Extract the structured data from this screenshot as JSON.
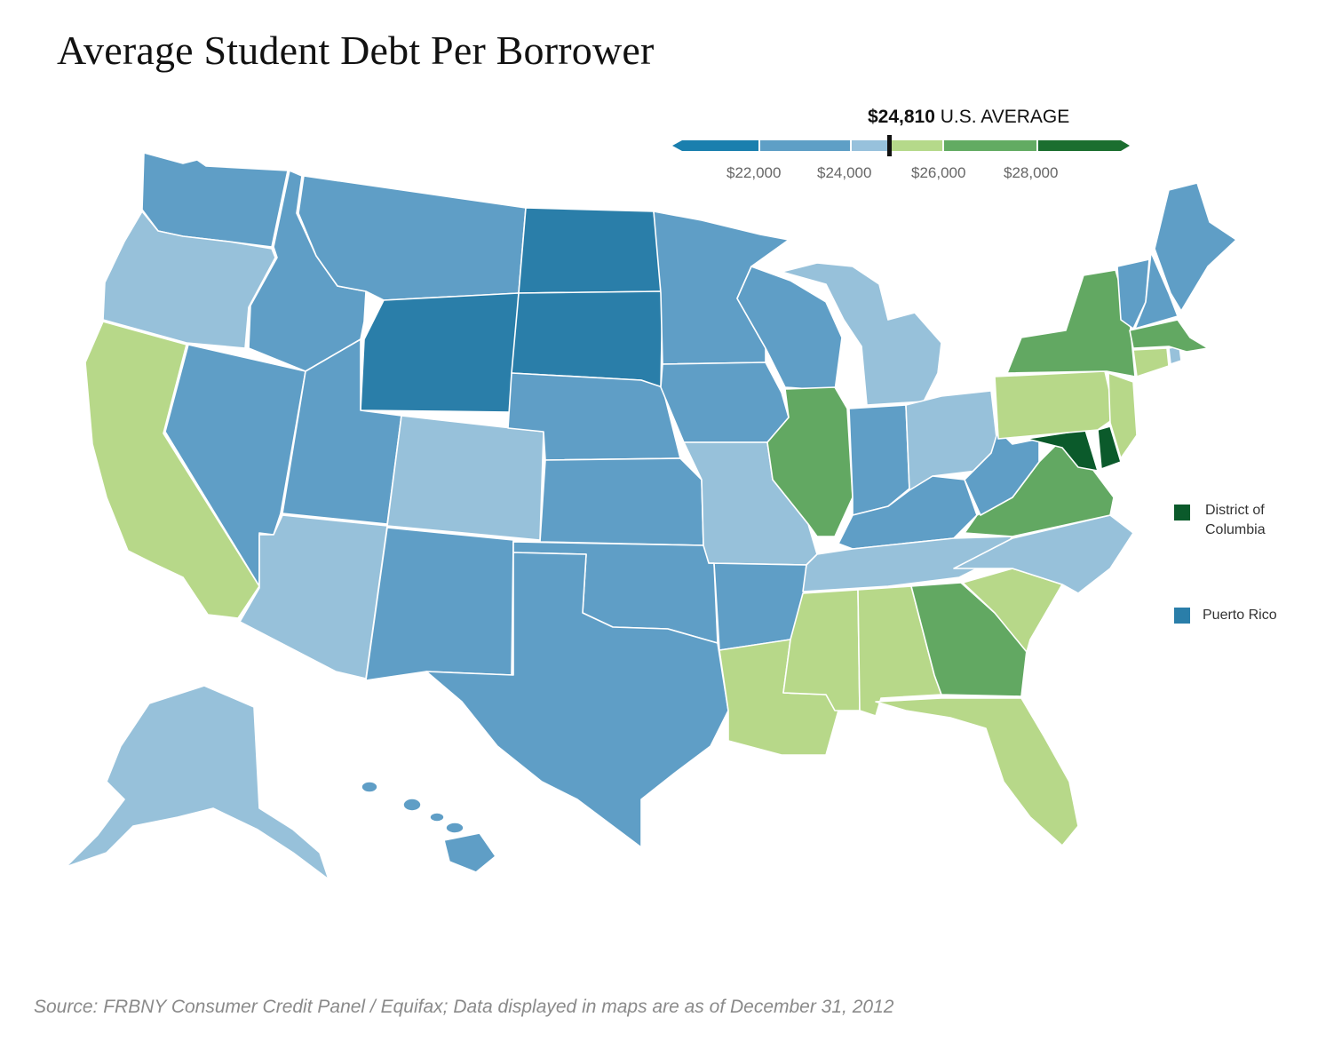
{
  "title": "Average Student Debt Per Borrower",
  "average": {
    "value": "$24,810",
    "label": "U.S. AVERAGE"
  },
  "scale": {
    "ticks": [
      "$22,000",
      "$24,000",
      "$26,000",
      "$28,000"
    ],
    "bins": [
      "#1a7fae",
      "#5e9fc6",
      "#97c1dc",
      "#b5d98a",
      "#62ab62",
      "#1b6e2f"
    ]
  },
  "colors": {
    "dark_blue": "#2a7ea9",
    "mid_blue": "#5f9ec6",
    "light_blue": "#97c1da",
    "light_green": "#b7d889",
    "mid_green": "#62a862",
    "dark_green": "#0b5a2b"
  },
  "states": {
    "WA": "mid_blue",
    "OR": "light_blue",
    "CA": "light_green",
    "NV": "mid_blue",
    "ID": "mid_blue",
    "MT": "mid_blue",
    "WY": "dark_blue",
    "UT": "mid_blue",
    "AZ": "light_blue",
    "CO": "light_blue",
    "NM": "mid_blue",
    "ND": "dark_blue",
    "SD": "dark_blue",
    "NE": "mid_blue",
    "KS": "mid_blue",
    "OK": "mid_blue",
    "TX": "mid_blue",
    "MN": "mid_blue",
    "IA": "mid_blue",
    "MO": "light_blue",
    "AR": "mid_blue",
    "LA": "light_green",
    "WI": "mid_blue",
    "IL": "mid_green",
    "MI": "light_blue",
    "IN": "mid_blue",
    "OH": "light_blue",
    "KY": "mid_blue",
    "TN": "light_blue",
    "MS": "light_green",
    "AL": "light_green",
    "GA": "mid_green",
    "FL": "light_green",
    "SC": "light_green",
    "NC": "light_blue",
    "VA": "mid_green",
    "WV": "mid_blue",
    "MD": "dark_green",
    "DE": "dark_green",
    "PA": "light_green",
    "NJ": "light_green",
    "NY": "mid_green",
    "CT": "light_green",
    "RI": "light_blue",
    "MA": "mid_green",
    "VT": "mid_blue",
    "NH": "mid_blue",
    "ME": "mid_blue",
    "AK": "light_blue",
    "HI": "mid_blue"
  },
  "legend": [
    {
      "label_line1": "District of",
      "label_line2": "Columbia",
      "color": "#0b5a2b"
    },
    {
      "label_line1": "Puerto Rico",
      "label_line2": "",
      "color": "#2a7ea9"
    }
  ],
  "source": "Source: FRBNY Consumer Credit Panel / Equifax; Data displayed in maps are as of December 31, 2012"
}
